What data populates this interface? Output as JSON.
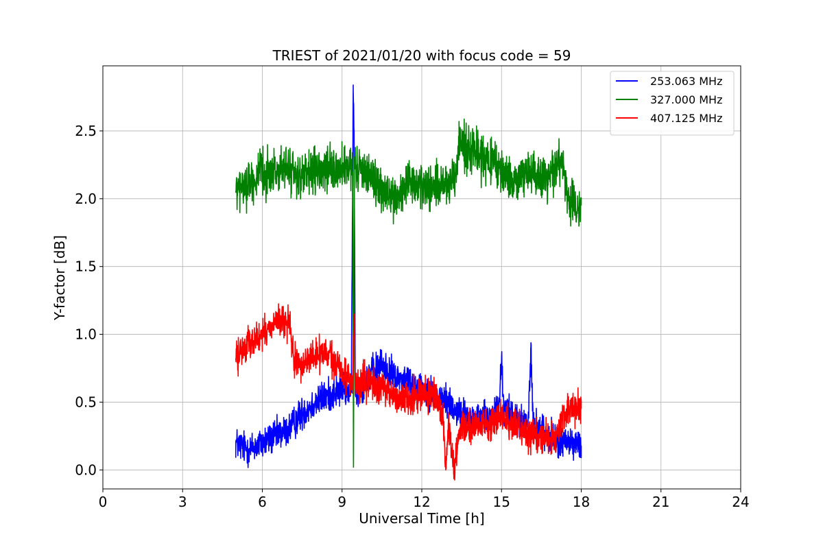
{
  "chart_data": {
    "type": "line",
    "title": "TRIEST of 2021/01/20 with focus code = 59",
    "xlabel": "Universal Time [h]",
    "ylabel": "Y-factor [dB]",
    "xlim": [
      0,
      24
    ],
    "ylim": [
      -0.14,
      2.98
    ],
    "xticks": [
      0,
      3,
      6,
      9,
      12,
      15,
      18,
      21,
      24
    ],
    "xtick_labels": [
      "0",
      "3",
      "6",
      "9",
      "12",
      "15",
      "18",
      "21",
      "24"
    ],
    "yticks": [
      0.0,
      0.5,
      1.0,
      1.5,
      2.0,
      2.5
    ],
    "ytick_labels": [
      "0.0",
      "0.5",
      "1.0",
      "1.5",
      "2.0",
      "2.5"
    ],
    "grid": true,
    "legend_position": "top-right",
    "series": [
      {
        "name": "253.063 MHz",
        "color": "#0000ff",
        "noise": 0.06,
        "x": [
          5.0,
          5.5,
          6.0,
          6.5,
          7.0,
          7.5,
          8.0,
          8.5,
          9.0,
          9.35,
          9.42,
          9.45,
          9.5,
          10.0,
          10.5,
          11.0,
          11.5,
          12.0,
          12.5,
          13.0,
          13.5,
          14.0,
          14.5,
          14.9,
          15.0,
          15.1,
          15.5,
          16.0,
          16.1,
          16.2,
          16.5,
          17.0,
          17.5,
          18.0
        ],
        "y": [
          0.2,
          0.15,
          0.2,
          0.25,
          0.3,
          0.42,
          0.5,
          0.55,
          0.6,
          0.58,
          2.8,
          2.5,
          0.55,
          0.7,
          0.78,
          0.68,
          0.66,
          0.6,
          0.55,
          0.5,
          0.4,
          0.38,
          0.38,
          0.45,
          0.8,
          0.45,
          0.38,
          0.33,
          0.85,
          0.32,
          0.3,
          0.22,
          0.2,
          0.18
        ]
      },
      {
        "name": "327.000 MHz",
        "color": "#008000",
        "noise": 0.08,
        "x": [
          5.0,
          5.5,
          6.0,
          6.5,
          7.0,
          7.5,
          8.0,
          8.5,
          9.0,
          9.4,
          9.43,
          9.46,
          9.5,
          10.0,
          10.5,
          11.0,
          11.5,
          12.0,
          12.5,
          13.0,
          13.3,
          13.4,
          13.6,
          14.0,
          14.5,
          15.0,
          15.5,
          16.0,
          16.5,
          17.0,
          17.3,
          17.5,
          17.8,
          18.0
        ],
        "y": [
          2.05,
          2.12,
          2.18,
          2.2,
          2.22,
          2.15,
          2.2,
          2.2,
          2.22,
          2.2,
          0.02,
          2.2,
          2.22,
          2.2,
          2.05,
          2.0,
          2.1,
          2.1,
          2.08,
          2.1,
          2.12,
          2.45,
          2.4,
          2.35,
          2.28,
          2.2,
          2.12,
          2.2,
          2.15,
          2.22,
          2.3,
          2.02,
          1.9,
          1.95
        ]
      },
      {
        "name": "407.125 MHz",
        "color": "#ff0000",
        "noise": 0.06,
        "x": [
          5.0,
          5.5,
          6.0,
          6.5,
          7.0,
          7.2,
          7.5,
          8.0,
          8.5,
          9.0,
          9.4,
          9.45,
          9.5,
          10.0,
          10.5,
          11.0,
          11.5,
          12.0,
          12.5,
          12.8,
          12.9,
          13.0,
          13.2,
          13.5,
          14.0,
          14.5,
          15.0,
          15.5,
          16.0,
          16.5,
          17.0,
          17.3,
          17.5,
          18.0
        ],
        "y": [
          0.82,
          0.95,
          0.98,
          1.1,
          1.08,
          0.8,
          0.78,
          0.85,
          0.85,
          0.72,
          0.65,
          1.15,
          0.62,
          0.65,
          0.6,
          0.55,
          0.52,
          0.58,
          0.52,
          0.4,
          0.0,
          0.35,
          0.02,
          0.35,
          0.32,
          0.35,
          0.38,
          0.32,
          0.28,
          0.25,
          0.22,
          0.38,
          0.45,
          0.45
        ]
      }
    ]
  }
}
